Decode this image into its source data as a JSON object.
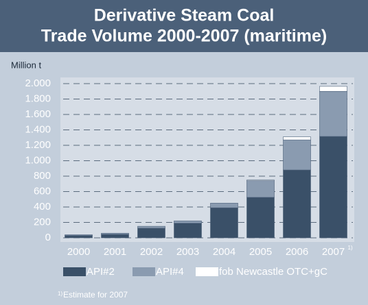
{
  "chart_data": {
    "type": "stacked_bar",
    "title": [
      "Derivative Steam Coal",
      "Trade Volume 2000-2007 (maritime)"
    ],
    "y_label": "Million t",
    "categories": [
      "2000",
      "2001",
      "2002",
      "2003",
      "2004",
      "2005",
      "2006",
      "2007"
    ],
    "category_notes": [
      null,
      null,
      null,
      null,
      null,
      null,
      null,
      "1)"
    ],
    "series": [
      {
        "name": "API#2",
        "color": "#3a5068",
        "values": [
          30,
          45,
          125,
          190,
          390,
          525,
          880,
          1315
        ]
      },
      {
        "name": "API#4",
        "color": "#8a9bb0",
        "values": [
          10,
          15,
          25,
          30,
          60,
          215,
          390,
          585
        ]
      },
      {
        "name": "fob Newcastle OTC+gC",
        "color": "#ffffff",
        "values": [
          0,
          0,
          0,
          0,
          0,
          10,
          40,
          65
        ]
      }
    ],
    "ylim": [
      0,
      2000
    ],
    "yticks": [
      0,
      200,
      400,
      600,
      800,
      {
        "value": 1000,
        "label": "1.000"
      },
      {
        "value": 1200,
        "label": "1.200"
      },
      {
        "value": 1400,
        "label": "1.400"
      },
      {
        "value": 1600,
        "label": "1.600"
      },
      {
        "value": 1800,
        "label": "1.800"
      },
      {
        "value": 2000,
        "label": "2.000"
      }
    ],
    "grid": true,
    "footnote": {
      "marker": "1)",
      "text": "Estimate for 2007"
    }
  }
}
